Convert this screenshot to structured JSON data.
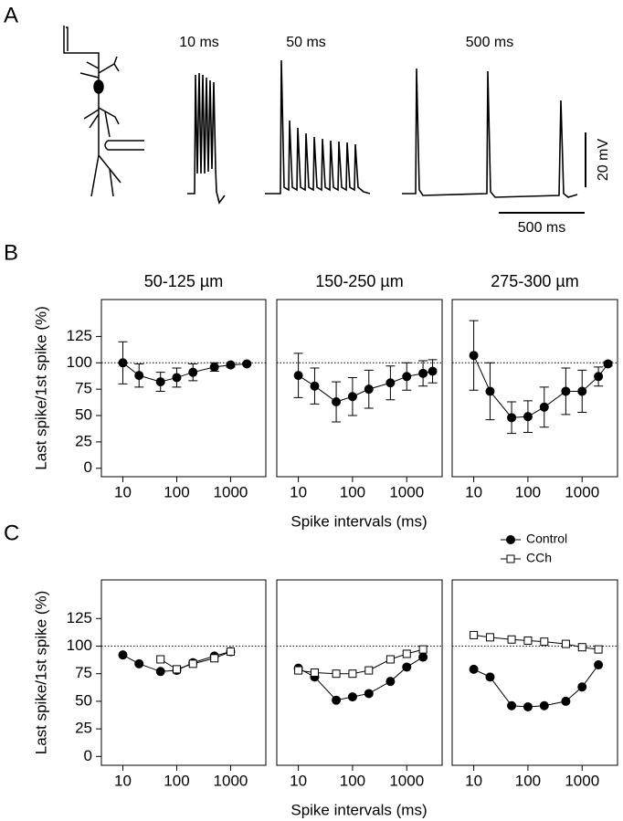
{
  "panel_a": {
    "label": "A",
    "traces": [
      "10 ms",
      "50 ms",
      "500 ms"
    ],
    "scale_voltage": "20 mV",
    "scale_time": "500 ms"
  },
  "chart_data": [
    {
      "type": "errorbar",
      "panel_label": "B",
      "title": "50-125 µm",
      "ylabel": "Last spike/1st spike (%)",
      "xlabel": "Spike intervals (ms)",
      "log_x": true,
      "reference_line": 100,
      "xlim": [
        4,
        4500
      ],
      "ylim": [
        -8,
        160
      ],
      "xticks": [
        10,
        100,
        1000
      ],
      "yticks": [
        0,
        25,
        50,
        75,
        100,
        125
      ],
      "series": [
        {
          "color": "#000000",
          "marker": "filled-circle",
          "x": [
            10,
            20,
            50,
            100,
            200,
            500,
            1000,
            2000
          ],
          "values": [
            100,
            88,
            82,
            86,
            91,
            96,
            98,
            99
          ],
          "errors": [
            20,
            11,
            9,
            9,
            8,
            4,
            2,
            1
          ]
        }
      ]
    },
    {
      "type": "errorbar",
      "title": "150-250 µm",
      "log_x": true,
      "reference_line": 100,
      "xlim": [
        4,
        4500
      ],
      "ylim": [
        -8,
        160
      ],
      "xticks": [
        10,
        100,
        1000
      ],
      "yticks": [
        0,
        25,
        50,
        75,
        100,
        125
      ],
      "series": [
        {
          "color": "#000000",
          "marker": "filled-circle",
          "x": [
            10,
            20,
            50,
            100,
            200,
            500,
            1000,
            2000,
            3000
          ],
          "values": [
            88,
            78,
            63,
            68,
            75,
            81,
            87,
            90,
            92
          ],
          "errors": [
            21,
            17,
            19,
            18,
            18,
            16,
            13,
            12,
            11
          ]
        }
      ]
    },
    {
      "type": "errorbar",
      "title": "275-300 µm",
      "log_x": true,
      "reference_line": 100,
      "xlim": [
        4,
        4500
      ],
      "ylim": [
        -8,
        160
      ],
      "xticks": [
        10,
        100,
        1000
      ],
      "yticks": [
        0,
        25,
        50,
        75,
        100,
        125
      ],
      "series": [
        {
          "color": "#000000",
          "marker": "filled-circle",
          "x": [
            10,
            20,
            50,
            100,
            200,
            500,
            1000,
            2000,
            3000
          ],
          "values": [
            107,
            73,
            48,
            49,
            58,
            73,
            73,
            87,
            99
          ],
          "errors": [
            33,
            27,
            15,
            15,
            19,
            22,
            20,
            9,
            2
          ]
        }
      ]
    },
    {
      "type": "line",
      "panel_label": "C",
      "ylabel": "Last spike/1st spike (%)",
      "xlabel": "Spike intervals (ms)",
      "log_x": true,
      "reference_line": 100,
      "legend": "top-right",
      "xlim": [
        4,
        4500
      ],
      "ylim": [
        -8,
        160
      ],
      "xticks": [
        10,
        100,
        1000
      ],
      "yticks": [
        0,
        25,
        50,
        75,
        100,
        125
      ],
      "series": [
        {
          "name": "Control",
          "color": "#000000",
          "marker": "filled-circle",
          "x": [
            10,
            20,
            50,
            100,
            200,
            500,
            1000
          ],
          "values": [
            92,
            84,
            77,
            78,
            85,
            91,
            95
          ]
        },
        {
          "name": "CCh",
          "color": "#ffffff",
          "marker": "open-square",
          "x": [
            50,
            100,
            200,
            500,
            1000
          ],
          "values": [
            88,
            79,
            84,
            89,
            95
          ]
        }
      ]
    },
    {
      "type": "line",
      "log_x": true,
      "reference_line": 100,
      "xlim": [
        4,
        4500
      ],
      "ylim": [
        -8,
        160
      ],
      "xticks": [
        10,
        100,
        1000
      ],
      "yticks": [
        0,
        25,
        50,
        75,
        100,
        125
      ],
      "series": [
        {
          "name": "Control",
          "color": "#000000",
          "marker": "filled-circle",
          "x": [
            10,
            20,
            50,
            100,
            200,
            500,
            1000,
            2000
          ],
          "values": [
            80,
            72,
            51,
            54,
            57,
            68,
            81,
            90
          ]
        },
        {
          "name": "CCh",
          "color": "#ffffff",
          "marker": "open-square",
          "x": [
            10,
            20,
            50,
            100,
            200,
            500,
            1000,
            2000
          ],
          "values": [
            78,
            76,
            75,
            75,
            78,
            88,
            93,
            97
          ]
        }
      ]
    },
    {
      "type": "line",
      "log_x": true,
      "reference_line": 100,
      "xlim": [
        4,
        4500
      ],
      "ylim": [
        -8,
        160
      ],
      "xticks": [
        10,
        100,
        1000
      ],
      "yticks": [
        0,
        25,
        50,
        75,
        100,
        125
      ],
      "series": [
        {
          "name": "Control",
          "color": "#000000",
          "marker": "filled-circle",
          "x": [
            10,
            20,
            50,
            100,
            200,
            500,
            1000,
            2000
          ],
          "values": [
            79,
            72,
            46,
            45,
            46,
            50,
            63,
            83
          ]
        },
        {
          "name": "CCh",
          "color": "#ffffff",
          "marker": "open-square",
          "x": [
            10,
            20,
            50,
            100,
            200,
            500,
            1000,
            2000
          ],
          "values": [
            110,
            108,
            106,
            105,
            104,
            102,
            99,
            97
          ]
        }
      ]
    }
  ]
}
